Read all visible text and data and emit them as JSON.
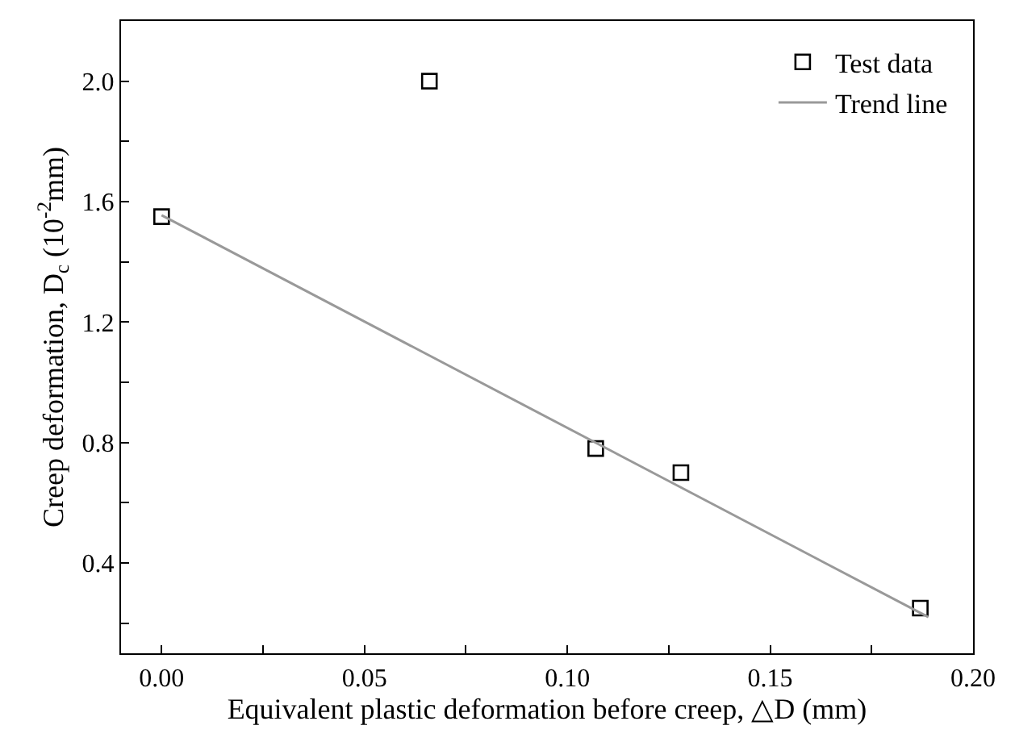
{
  "chart_data": {
    "type": "scatter",
    "xlabel": "Equivalent plastic deformation before creep, △D (mm)",
    "ylabel": "Creep deformation, D$_{c}$ (10$^{-2}$mm)",
    "xlim": [
      -0.01,
      0.2
    ],
    "ylim": [
      0.1,
      2.2
    ],
    "xticks": [
      {
        "value": 0,
        "label": "0.00"
      },
      {
        "value": 0.025,
        "label": null
      },
      0.05,
      {
        "value": 0.075,
        "label": null
      },
      {
        "value": 0.1,
        "label": "0.10"
      },
      {
        "value": 0.125,
        "label": null
      },
      0.15,
      {
        "value": 0.175,
        "label": null
      },
      {
        "value": 0.2,
        "label": "0.20"
      }
    ],
    "yticks": [
      {
        "value": 0.2,
        "label": null
      },
      0.4,
      {
        "value": 0.6,
        "label": null
      },
      0.8,
      {
        "value": 1.0,
        "label": null
      },
      1.2,
      {
        "value": 1.4,
        "label": null
      },
      1.6,
      {
        "value": 1.8,
        "label": null
      },
      {
        "value": 2.0,
        "label": "2.0"
      }
    ],
    "series": [
      {
        "name": "Test data",
        "marker": "square",
        "color": "#000000",
        "x": [
          0,
          0.066,
          0.107,
          0.128,
          0.187
        ],
        "values": [
          1.55,
          2.0,
          0.78,
          0.7,
          0.25
        ]
      },
      {
        "name": "Trend line",
        "type": "line",
        "marker": "none",
        "color": "#999999",
        "x": [
          0,
          0.189
        ],
        "values": [
          1.555,
          0.22
        ]
      }
    ],
    "legend": "top right"
  }
}
